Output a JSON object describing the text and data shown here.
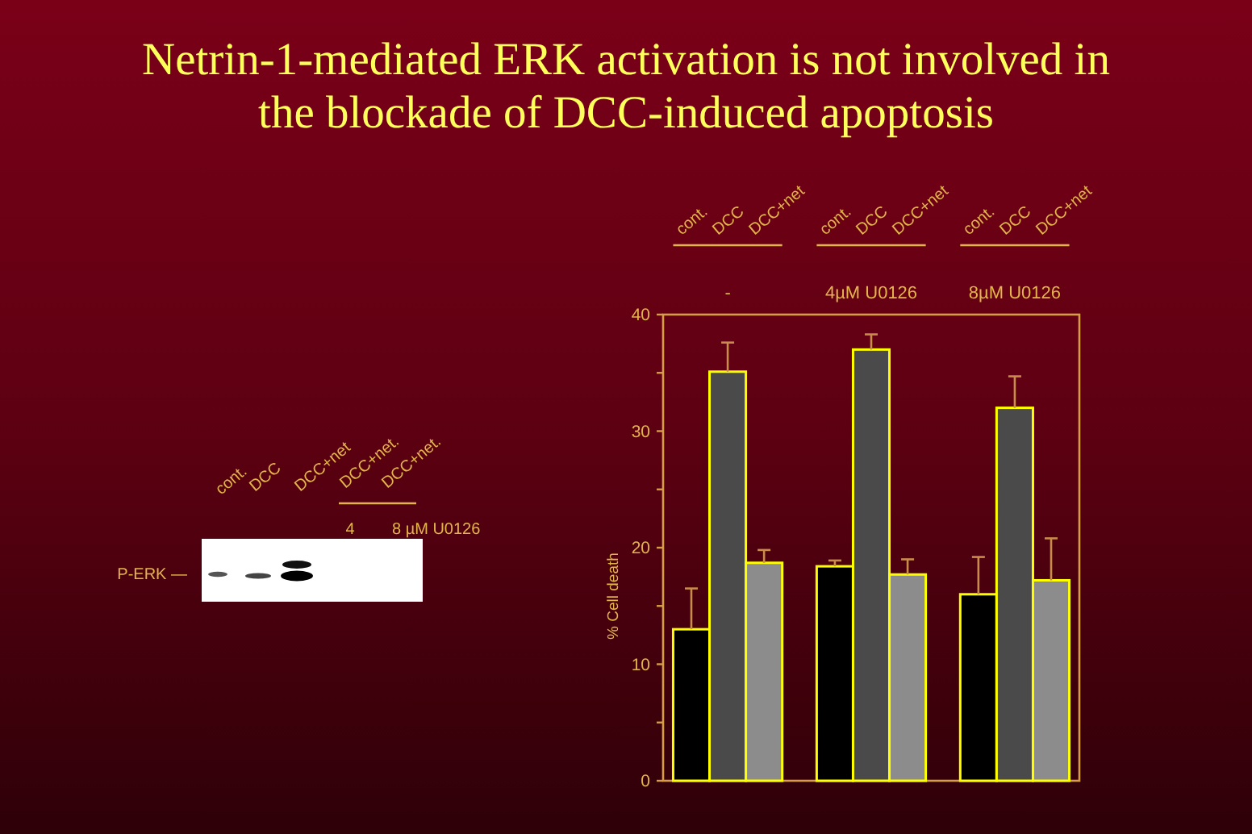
{
  "chart_data": {
    "type": "bar",
    "title": "Netrin-1-mediated ERK activation is not involved in the blockade of DCC-induced apoptosis",
    "ylabel": "% Cell death",
    "categories": [
      "cont.",
      "DCC",
      "DCC+net",
      "cont.",
      "DCC",
      "DCC+net",
      "cont.",
      "DCC",
      "DCC+net"
    ],
    "values": [
      13.0,
      35.1,
      18.7,
      18.4,
      37.0,
      17.7,
      16.0,
      32.0,
      17.2
    ],
    "colors": [
      "#000000",
      "#4a4a4a",
      "#8c8c8c",
      "#000000",
      "#4a4a4a",
      "#8c8c8c",
      "#000000",
      "#4a4a4a",
      "#8c8c8c"
    ],
    "errors": [
      [
        13.0,
        16.5
      ],
      [
        35.1,
        37.6
      ],
      [
        18.7,
        19.8
      ],
      [
        18.4,
        18.9
      ],
      [
        37.0,
        38.3
      ],
      [
        17.7,
        19.0
      ],
      [
        16.0,
        19.2
      ],
      [
        32.0,
        34.7
      ],
      [
        17.2,
        20.8
      ]
    ],
    "ylim": [
      0,
      40
    ],
    "yticks": [
      0,
      {
        "value": 5,
        "label": null
      },
      10,
      {
        "value": 15,
        "label": null
      },
      20,
      {
        "value": 25,
        "label": null
      },
      30,
      {
        "value": 35,
        "label": null
      },
      40
    ],
    "annotations": [
      "-",
      "4µM U0126",
      "8µM U0126",
      "cont.",
      "DCC",
      "DCC+net",
      "DCC+net.",
      "DCC+net.",
      "4",
      "8 µM U0126",
      "P-ERK —"
    ]
  }
}
